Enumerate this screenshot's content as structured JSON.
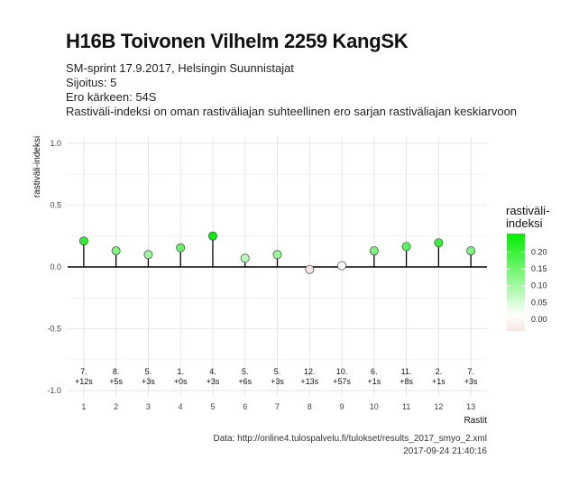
{
  "chart_data": {
    "type": "lollipop",
    "title": "H16B Toivonen Vilhelm 2259 KangSK",
    "subtitle_lines": [
      "SM-sprint 17.9.2017, Helsingin Suunnistajat",
      "Sijoitus: 5",
      "Ero kärkeen: 54S",
      "Rastiväli-indeksi on oman rastiväliajan suhteellinen ero sarjan rastiväliajan keskiarvoon"
    ],
    "xlabel": "Rastit",
    "ylabel": "rastiväli-indeksi",
    "ylim": [
      -1.05,
      1.05
    ],
    "y_ticks": [
      "1.0",
      "0.5",
      "0.0",
      "-0.5",
      "-1.0"
    ],
    "x": [
      1,
      2,
      3,
      4,
      5,
      6,
      7,
      8,
      9,
      10,
      11,
      12,
      13
    ],
    "values": [
      0.21,
      0.13,
      0.1,
      0.155,
      0.25,
      0.07,
      0.1,
      -0.02,
      0.01,
      0.13,
      0.165,
      0.195,
      0.13
    ],
    "point_labels": [
      [
        "7.",
        "+12s"
      ],
      [
        "8.",
        "+5s"
      ],
      [
        "5.",
        "+3s"
      ],
      [
        "1.",
        "+0s"
      ],
      [
        "4.",
        "+3s"
      ],
      [
        "5.",
        "+6s"
      ],
      [
        "5.",
        "+3s"
      ],
      [
        "12.",
        "+13s"
      ],
      [
        "10.",
        "+57s"
      ],
      [
        "6.",
        "+1s"
      ],
      [
        "11.",
        "+8s"
      ],
      [
        "2.",
        "+1s"
      ],
      [
        "7.",
        "+3s"
      ]
    ],
    "legend": {
      "title_lines": [
        "rastiväli-",
        "indeksi"
      ],
      "ticks": [
        "0.20",
        "0.15",
        "0.10",
        "0.05",
        "0.00"
      ],
      "position": "right"
    },
    "colors": {
      "high": "#00ee00",
      "low": "#f4e6e2"
    }
  },
  "captions": {
    "source": "Data: http://online4.tulospalvelu.fi/tulokset/results_2017_smyo_2.xml",
    "timestamp": "2017-09-24 21:40:16"
  }
}
